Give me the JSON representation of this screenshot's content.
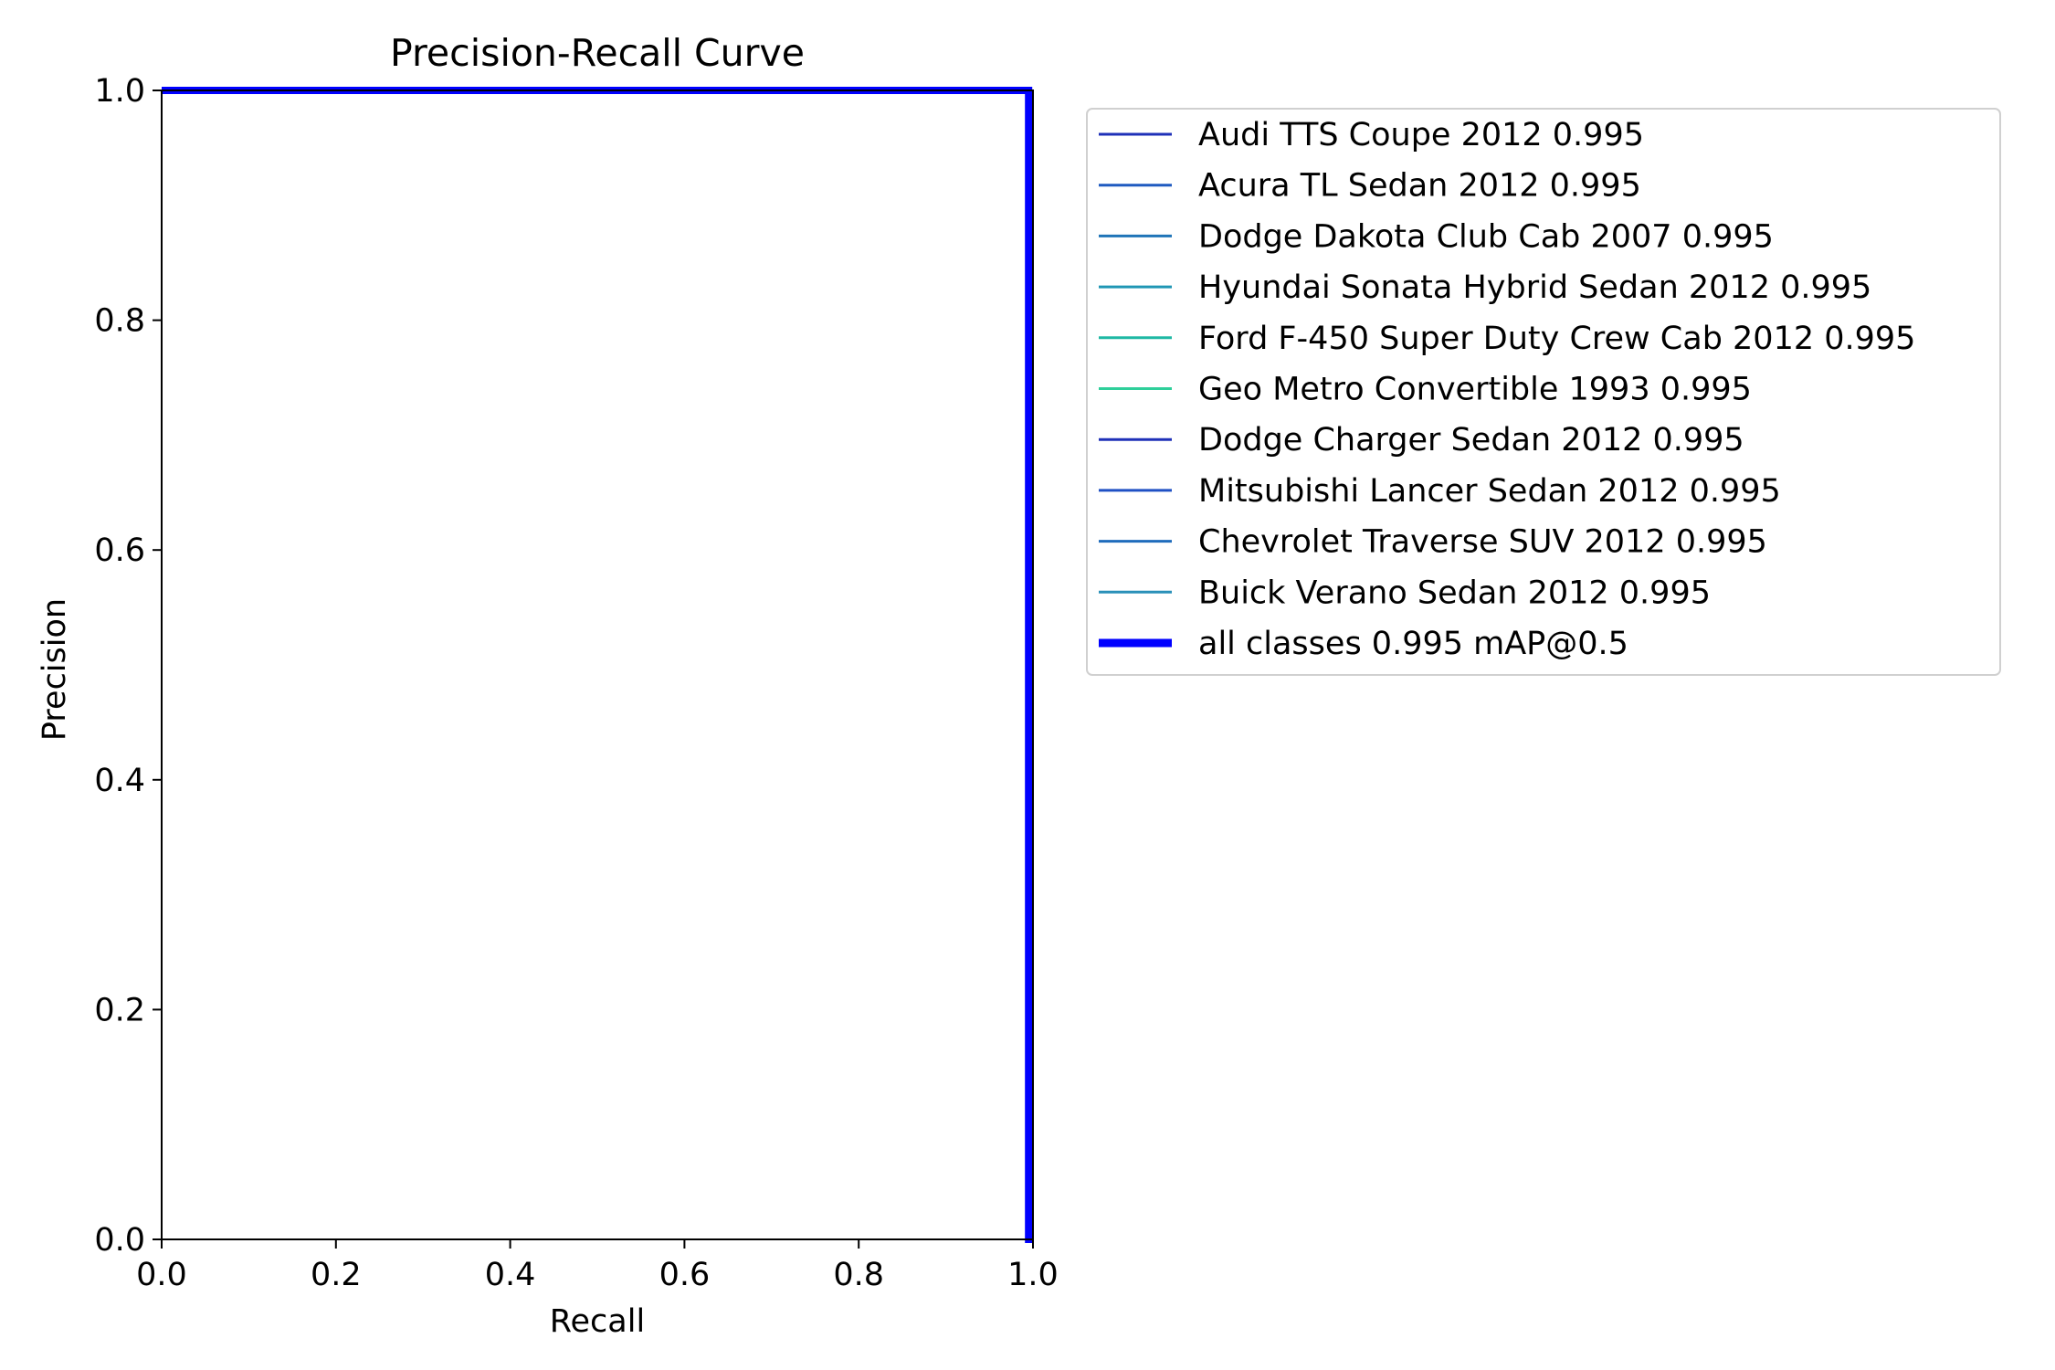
{
  "chart_data": {
    "type": "line",
    "title": "Precision-Recall Curve",
    "xlabel": "Recall",
    "ylabel": "Precision",
    "xlim": [
      0.0,
      1.0
    ],
    "ylim": [
      0.0,
      1.0
    ],
    "xticks": [
      "0.0",
      "0.2",
      "0.4",
      "0.6",
      "0.8",
      "1.0"
    ],
    "yticks": [
      "0.0",
      "0.2",
      "0.4",
      "0.6",
      "0.8",
      "1.0"
    ],
    "grid": false,
    "legend_position": "outside right, top",
    "series": [
      {
        "name": "Audi TTS Coupe 2012 0.995",
        "color": "#1f30b8",
        "bold": false,
        "x": [
          0.0,
          0.995,
          0.995,
          1.0
        ],
        "y": [
          1.0,
          1.0,
          0.0,
          0.0
        ]
      },
      {
        "name": "Acura TL Sedan 2012 0.995",
        "color": "#1f5ac0",
        "bold": false,
        "x": [
          0.0,
          0.995,
          0.995,
          1.0
        ],
        "y": [
          1.0,
          1.0,
          0.0,
          0.0
        ]
      },
      {
        "name": "Dodge Dakota Club Cab 2007 0.995",
        "color": "#1f74b8",
        "bold": false,
        "x": [
          0.0,
          0.995,
          0.995,
          1.0
        ],
        "y": [
          1.0,
          1.0,
          0.0,
          0.0
        ]
      },
      {
        "name": "Hyundai Sonata Hybrid Sedan 2012 0.995",
        "color": "#1f96b4",
        "bold": false,
        "x": [
          0.0,
          0.995,
          0.995,
          1.0
        ],
        "y": [
          1.0,
          1.0,
          0.0,
          0.0
        ]
      },
      {
        "name": "Ford F-450 Super Duty Crew Cab 2012 0.995",
        "color": "#1fb8a4",
        "bold": false,
        "x": [
          0.0,
          0.995,
          0.995,
          1.0
        ],
        "y": [
          1.0,
          1.0,
          0.0,
          0.0
        ]
      },
      {
        "name": "Geo Metro Convertible 1993 0.995",
        "color": "#2ecf9a",
        "bold": false,
        "x": [
          0.0,
          0.995,
          0.995,
          1.0
        ],
        "y": [
          1.0,
          1.0,
          0.0,
          0.0
        ]
      },
      {
        "name": "Dodge Charger Sedan 2012 0.995",
        "color": "#1f30b8",
        "bold": false,
        "x": [
          0.0,
          0.995,
          0.995,
          1.0
        ],
        "y": [
          1.0,
          1.0,
          0.0,
          0.0
        ]
      },
      {
        "name": "Mitsubishi Lancer Sedan 2012 0.995",
        "color": "#1f50c4",
        "bold": false,
        "x": [
          0.0,
          0.995,
          0.995,
          1.0
        ],
        "y": [
          1.0,
          1.0,
          0.0,
          0.0
        ]
      },
      {
        "name": "Chevrolet Traverse SUV 2012 0.995",
        "color": "#1f6cbc",
        "bold": false,
        "x": [
          0.0,
          0.995,
          0.995,
          1.0
        ],
        "y": [
          1.0,
          1.0,
          0.0,
          0.0
        ]
      },
      {
        "name": "Buick Verano Sedan 2012 0.995",
        "color": "#2990b8",
        "bold": false,
        "x": [
          0.0,
          0.995,
          0.995,
          1.0
        ],
        "y": [
          1.0,
          1.0,
          0.0,
          0.0
        ]
      },
      {
        "name": "all classes 0.995 mAP@0.5",
        "color": "#0000ff",
        "bold": true,
        "x": [
          0.0,
          0.995,
          0.995,
          1.0
        ],
        "y": [
          1.0,
          1.0,
          0.0,
          0.0
        ]
      }
    ]
  }
}
